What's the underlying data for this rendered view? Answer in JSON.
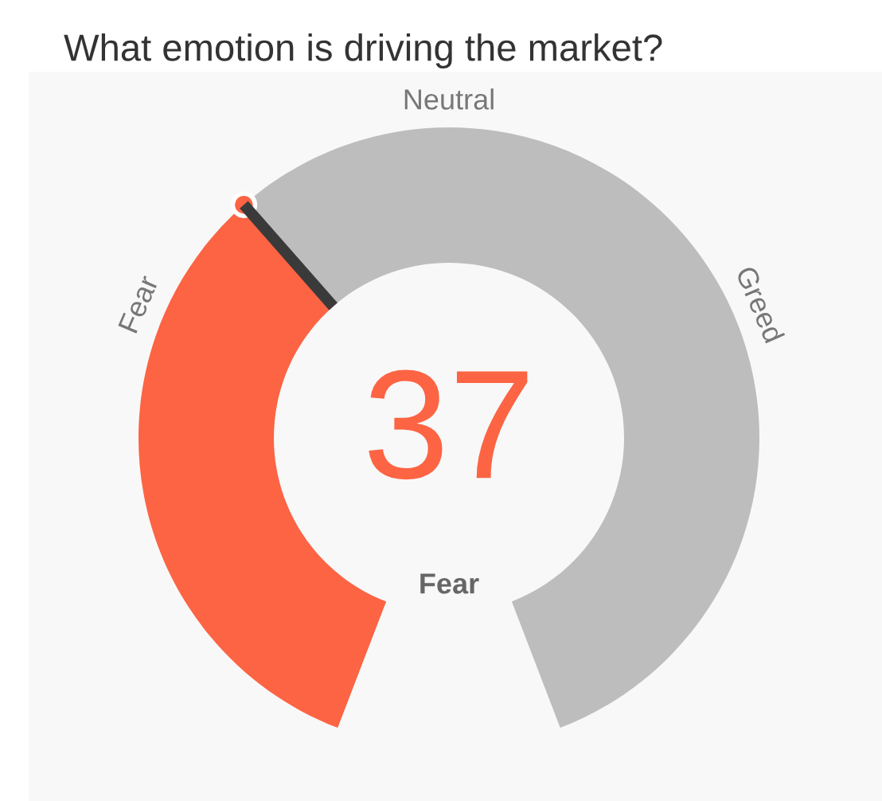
{
  "chart_data": {
    "type": "donut",
    "title": "What emotion is driving the market?",
    "categories": [
      null,
      null
    ],
    "values": [
      37,
      63
    ],
    "colors": [
      "#fc6443",
      "#bdbdbd"
    ],
    "annotations": [
      "37",
      "Fear",
      "Fear",
      "Neutral",
      "Greed"
    ]
  }
}
